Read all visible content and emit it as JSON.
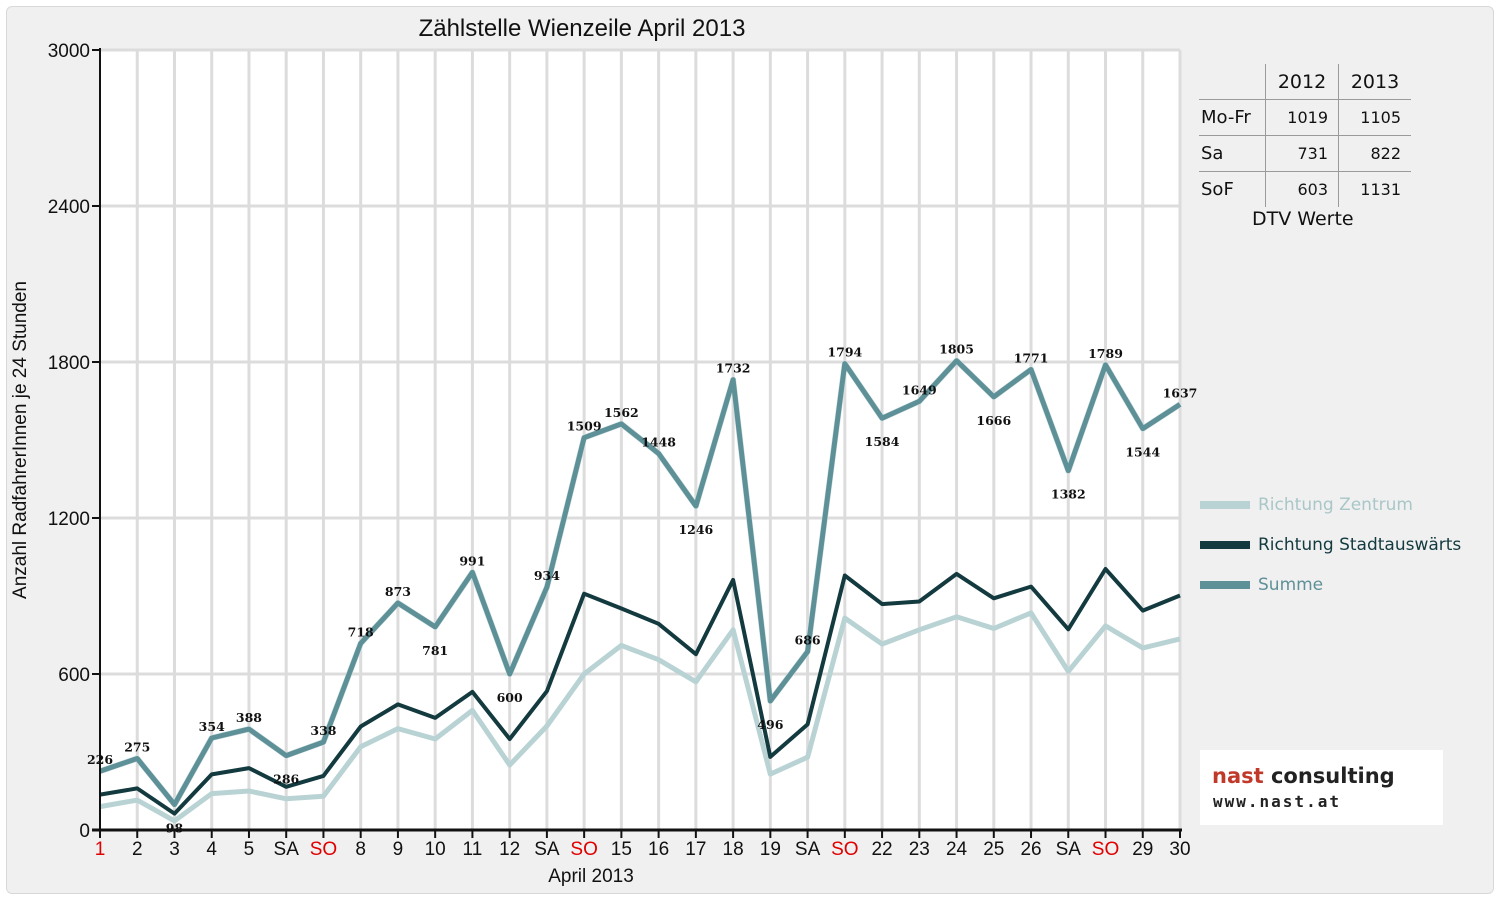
{
  "chart_data": {
    "type": "line",
    "title": "Zählstelle Wienzeile April 2013",
    "xlabel": "April 2013",
    "ylabel": "Anzahl RadfahrerInnen je 24 Stunden",
    "ylim": [
      0,
      3000
    ],
    "yticks": [
      "0",
      "600",
      "1200",
      "1800",
      "2400",
      "3000"
    ],
    "grid": true,
    "legend_position": "right",
    "categories": [
      "1",
      "2",
      "3",
      "4",
      "5",
      "SA",
      "SO",
      "8",
      "9",
      "10",
      "11",
      "12",
      "SA",
      "SO",
      "15",
      "16",
      "17",
      "18",
      "19",
      "SA",
      "SO",
      "22",
      "23",
      "24",
      "25",
      "26",
      "SA",
      "SO",
      "29",
      "30"
    ],
    "red_categories": [
      0,
      6,
      13,
      20,
      27
    ],
    "series": [
      {
        "name": "Richtung Zentrum",
        "color": "#b9d3d4",
        "values": [
          90,
          115,
          35,
          140,
          150,
          120,
          130,
          320,
          390,
          350,
          460,
          250,
          400,
          600,
          710,
          655,
          570,
          770,
          215,
          280,
          815,
          715,
          770,
          820,
          775,
          835,
          610,
          785,
          700,
          735
        ]
      },
      {
        "name": "Richtung Stadtauswärts",
        "color": "#133a3f",
        "values": [
          136,
          160,
          63,
          214,
          238,
          166,
          208,
          398,
          483,
          431,
          531,
          350,
          534,
          909,
          852,
          793,
          676,
          962,
          281,
          406,
          979,
          869,
          879,
          985,
          891,
          936,
          772,
          1004,
          844,
          902
        ]
      },
      {
        "name": "Summe",
        "color": "#5e9098",
        "values": [
          226,
          275,
          98,
          354,
          388,
          286,
          338,
          718,
          873,
          781,
          991,
          600,
          934,
          1509,
          1562,
          1448,
          1246,
          1732,
          496,
          686,
          1794,
          1584,
          1649,
          1805,
          1666,
          1771,
          1382,
          1789,
          1544,
          1637
        ],
        "data_labels": [
          "226",
          "275",
          "98",
          "354",
          "388",
          "286",
          "338",
          "718",
          "873",
          "781",
          "991",
          "600",
          "934",
          "1509",
          "1562",
          "1448",
          "1246",
          "1732",
          "496",
          "686",
          "1794",
          "1584",
          "1649",
          "1805",
          "1666",
          "1771",
          "1382",
          "1789",
          "1544",
          "1637"
        ]
      }
    ]
  },
  "dtv_table": {
    "years": [
      "2012",
      "2013"
    ],
    "rows": [
      {
        "label": "Mo-Fr",
        "v2012": "1019",
        "v2013": "1105"
      },
      {
        "label": "Sa",
        "v2012": "731",
        "v2013": "822"
      },
      {
        "label": "SoF",
        "v2012": "603",
        "v2013": "1131"
      }
    ],
    "caption": "DTV Werte"
  },
  "logo": {
    "name_part1": "nast",
    "name_part2": " consulting",
    "url": "www.nast.at",
    "accent_color": "#c0392b"
  },
  "colors": {
    "sunday": "#e00000",
    "grid": "#dcdcdc",
    "axis": "#111111"
  }
}
